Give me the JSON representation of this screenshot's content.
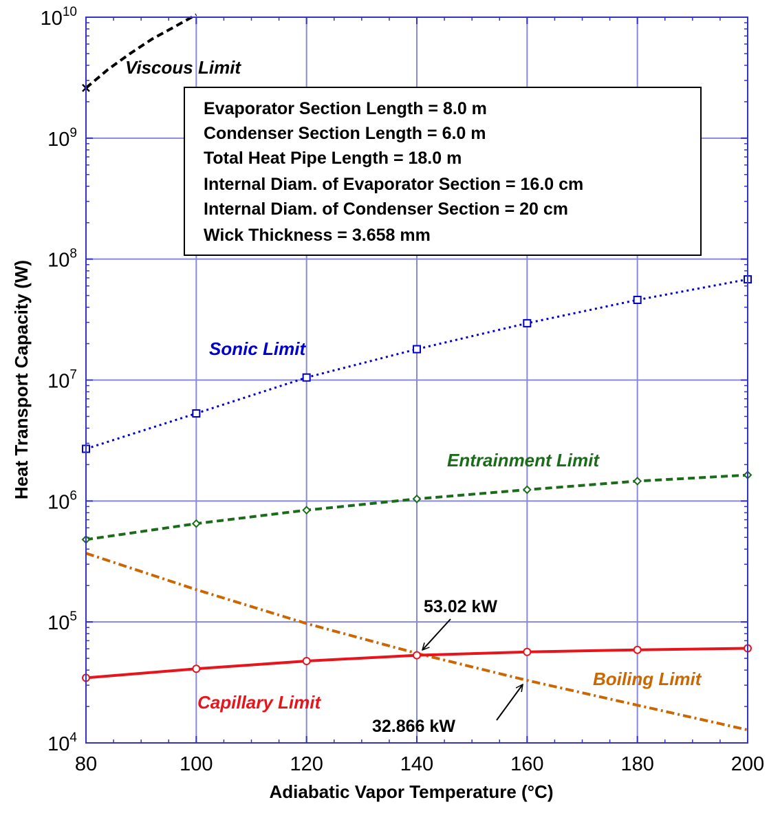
{
  "chart_data": {
    "type": "line",
    "xlabel": "Adiabatic Vapor Temperature (°C)",
    "ylabel": "Heat Transport Capacity (W)",
    "xlim": [
      80,
      200
    ],
    "ylim": [
      10000,
      10000000000
    ],
    "yscale": "log",
    "grid": true,
    "x_ticks": [
      "80",
      "100",
      "120",
      "140",
      "160",
      "180",
      "200"
    ],
    "y_ticks": [
      {
        "base": "10",
        "exp": "4"
      },
      {
        "base": "10",
        "exp": "5"
      },
      {
        "base": "10",
        "exp": "6"
      },
      {
        "base": "10",
        "exp": "7"
      },
      {
        "base": "10",
        "exp": "8"
      },
      {
        "base": "10",
        "exp": "9"
      },
      {
        "base": "10",
        "exp": "10"
      }
    ],
    "series": [
      {
        "name": "Viscous Limit",
        "color": "#000000",
        "style": "dashed",
        "marker": "x",
        "x": [
          80,
          84,
          88,
          92,
          96,
          100
        ],
        "y": [
          2600000000,
          3700000000,
          5000000000,
          6600000000,
          8300000000,
          10500000000
        ],
        "marker_x": [
          80
        ]
      },
      {
        "name": "Sonic Limit",
        "color": "#0000cc",
        "style": "dotted",
        "marker": "square",
        "x": [
          80,
          100,
          120,
          140,
          160,
          180,
          200
        ],
        "y": [
          2700000,
          5300000,
          10500000,
          18000000,
          29500000,
          46000000,
          68000000
        ],
        "marker_x": [
          80,
          100,
          120,
          140,
          160,
          180,
          200
        ]
      },
      {
        "name": "Entrainment Limit",
        "color": "#1a6b1a",
        "style": "dashed",
        "marker": "diamond",
        "x": [
          80,
          100,
          120,
          140,
          160,
          180,
          200
        ],
        "y": [
          480000,
          650000,
          840000,
          1040000,
          1240000,
          1460000,
          1640000
        ],
        "marker_x": [
          80,
          100,
          120,
          140,
          160,
          180,
          200
        ]
      },
      {
        "name": "Boiling Limit",
        "color": "#cc6600",
        "style": "dashdot",
        "marker": "none",
        "x": [
          80,
          100,
          120,
          140,
          160,
          180,
          200
        ],
        "y": [
          370000,
          185000,
          97000,
          55000,
          32866,
          20500,
          12800
        ],
        "marker_x": []
      },
      {
        "name": "Capillary Limit",
        "color": "#e8141c",
        "style": "solid",
        "marker": "circle",
        "x": [
          80,
          100,
          120,
          140,
          160,
          180,
          200
        ],
        "y": [
          34500,
          41000,
          47500,
          53020,
          56500,
          58800,
          60500
        ],
        "marker_x": [
          80,
          100,
          120,
          140,
          160,
          180,
          200
        ]
      }
    ],
    "info_box": [
      "Evaporator Section Length = 8.0 m",
      "Condenser Section Length = 6.0 m",
      "Total Heat Pipe Length = 18.0 m",
      "Internal Diam. of Evaporator Section = 16.0 cm",
      "Internal Diam. of Condenser Section = 20 cm",
      "Wick Thickness = 3.658 mm"
    ],
    "annotations": [
      {
        "text": "53.02 kW",
        "x": 140,
        "y": 53020
      },
      {
        "text": "32.866 kW",
        "x": 160,
        "y": 32866
      }
    ],
    "grid_color": "#8888dd",
    "frame_color": "#3333cc"
  }
}
